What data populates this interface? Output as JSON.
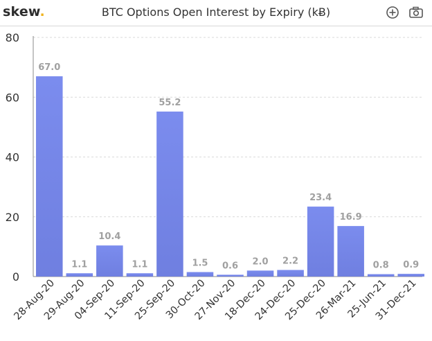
{
  "header": {
    "logo_text": "skew",
    "logo_dot": ".",
    "title": "BTC Options Open Interest by Expiry (kɃ)",
    "icons": [
      "zoom-in-icon",
      "camera-icon"
    ]
  },
  "colors": {
    "bar": "#7b8cee",
    "bar_dark": "#6f7fe0",
    "accent": "#f0b31d",
    "grid": "#d9d9d9",
    "label": "#a0a0a0"
  },
  "chart_data": {
    "type": "bar",
    "title": "BTC Options Open Interest by Expiry (kɃ)",
    "xlabel": "",
    "ylabel": "",
    "categories": [
      "28-Aug-20",
      "29-Aug-20",
      "04-Sep-20",
      "11-Sep-20",
      "25-Sep-20",
      "30-Oct-20",
      "27-Nov-20",
      "18-Dec-20",
      "24-Dec-20",
      "25-Dec-20",
      "26-Mar-21",
      "25-Jun-21",
      "31-Dec-21"
    ],
    "values": [
      67.0,
      1.1,
      10.4,
      1.1,
      55.2,
      1.5,
      0.6,
      2.0,
      2.2,
      23.4,
      16.9,
      0.8,
      0.9
    ],
    "data_labels": [
      "67.0",
      "1.1",
      "10.4",
      "1.1",
      "55.2",
      "1.5",
      "0.6",
      "2.0",
      "2.2",
      "23.4",
      "16.9",
      "0.8",
      "0.9"
    ],
    "ylim": [
      0,
      80
    ],
    "yticks": [
      0,
      20,
      40,
      60,
      80
    ],
    "grid": true,
    "legend": "none"
  }
}
